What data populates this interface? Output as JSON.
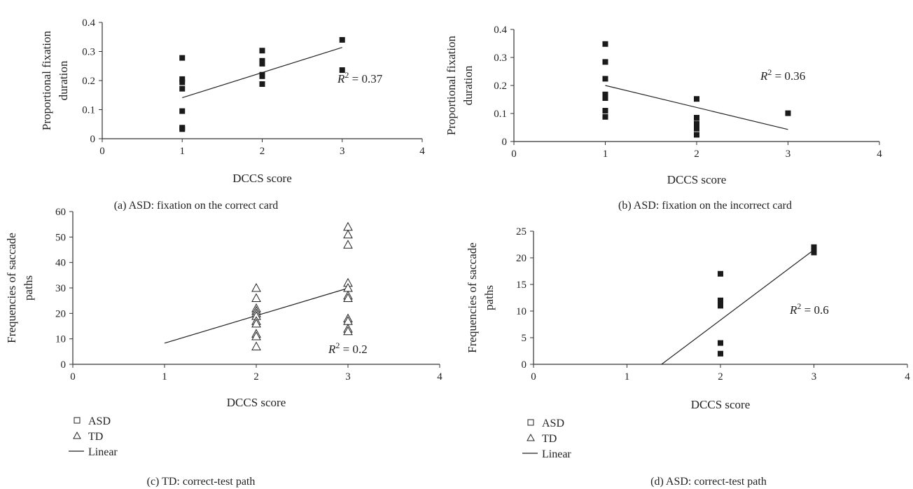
{
  "chart_data": [
    {
      "id": "a",
      "type": "scatter",
      "caption": "(a)  ASD: fixation on the correct card",
      "xlabel": "DCCS score",
      "ylabel_lines": [
        "Proportional fixation",
        "duration"
      ],
      "xlim": [
        0,
        4
      ],
      "ylim": [
        0,
        0.4
      ],
      "x_ticks": [
        "0",
        "1",
        "2",
        "3",
        "4"
      ],
      "y_ticks": [
        "0",
        "0.1",
        "0.2",
        "0.3",
        "0.4"
      ],
      "marker": "filled-square",
      "points": [
        [
          1,
          0.278
        ],
        [
          1,
          0.205
        ],
        [
          1,
          0.194
        ],
        [
          1,
          0.172
        ],
        [
          1,
          0.095
        ],
        [
          1,
          0.038
        ],
        [
          1,
          0.033
        ],
        [
          2,
          0.303
        ],
        [
          2,
          0.268
        ],
        [
          2,
          0.258
        ],
        [
          2,
          0.22
        ],
        [
          2,
          0.215
        ],
        [
          2,
          0.188
        ],
        [
          3,
          0.34
        ],
        [
          3,
          0.236
        ]
      ],
      "trendline": [
        [
          1,
          0.141
        ],
        [
          3,
          0.314
        ]
      ],
      "r2": {
        "prefix": "R",
        "sup": "2",
        "value": " = 0.37"
      }
    },
    {
      "id": "b",
      "type": "scatter",
      "caption": "(b)  ASD: fixation on the incorrect card",
      "xlabel": "DCCS score",
      "ylabel_lines": [
        "Proportional fixation",
        "duration"
      ],
      "xlim": [
        0,
        4
      ],
      "ylim": [
        0,
        0.4
      ],
      "x_ticks": [
        "0",
        "1",
        "2",
        "3",
        "4"
      ],
      "y_ticks": [
        "0",
        "0.1",
        "0.2",
        "0.3",
        "0.4"
      ],
      "marker": "filled-square",
      "points": [
        [
          1,
          0.348
        ],
        [
          1,
          0.284
        ],
        [
          1,
          0.224
        ],
        [
          1,
          0.168
        ],
        [
          1,
          0.155
        ],
        [
          1,
          0.11
        ],
        [
          1,
          0.088
        ],
        [
          2,
          0.152
        ],
        [
          2,
          0.085
        ],
        [
          2,
          0.064
        ],
        [
          2,
          0.046
        ],
        [
          2,
          0.024
        ],
        [
          3,
          0.101
        ]
      ],
      "trendline": [
        [
          1,
          0.2
        ],
        [
          3,
          0.043
        ]
      ],
      "r2": {
        "prefix": "R",
        "sup": "2",
        "value": " = 0.36"
      }
    },
    {
      "id": "c",
      "type": "scatter",
      "caption": "(c)  TD: correct-test path",
      "xlabel": "DCCS score",
      "ylabel_lines": [
        "Frequencies of saccade",
        "paths"
      ],
      "xlim": [
        0,
        4
      ],
      "ylim": [
        0,
        60
      ],
      "x_ticks": [
        "0",
        "1",
        "2",
        "3",
        "4"
      ],
      "y_ticks": [
        "0",
        "10",
        "20",
        "30",
        "40",
        "50",
        "60"
      ],
      "marker": "open-triangle",
      "points": [
        [
          2,
          30
        ],
        [
          2,
          26
        ],
        [
          2,
          22
        ],
        [
          2,
          21
        ],
        [
          2,
          20
        ],
        [
          2,
          19
        ],
        [
          2,
          17
        ],
        [
          2,
          16
        ],
        [
          2,
          12
        ],
        [
          2,
          11
        ],
        [
          2,
          7
        ],
        [
          3,
          54
        ],
        [
          3,
          51
        ],
        [
          3,
          47
        ],
        [
          3,
          32
        ],
        [
          3,
          30
        ],
        [
          3,
          27
        ],
        [
          3,
          26
        ],
        [
          3,
          18
        ],
        [
          3,
          17
        ],
        [
          3,
          14
        ],
        [
          3,
          13
        ]
      ],
      "trendline": [
        [
          1,
          8.3
        ],
        [
          3,
          29.9
        ]
      ],
      "r2": {
        "prefix": "R",
        "sup": "2",
        "value": " = 0.2"
      },
      "legend": [
        {
          "marker": "open-square",
          "label": "ASD"
        },
        {
          "marker": "open-triangle",
          "label": "TD"
        },
        {
          "marker": "line",
          "label": "Linear"
        }
      ]
    },
    {
      "id": "d",
      "type": "scatter",
      "caption": "(d)  ASD: correct-test path",
      "xlabel": "DCCS score",
      "ylabel_lines": [
        "Frequencies of saccade",
        "paths"
      ],
      "xlim": [
        0,
        4
      ],
      "ylim": [
        0,
        25
      ],
      "x_ticks": [
        "0",
        "1",
        "2",
        "3",
        "4"
      ],
      "y_ticks": [
        "0",
        "5",
        "10",
        "15",
        "20",
        "25"
      ],
      "marker": "filled-square",
      "points": [
        [
          2,
          17
        ],
        [
          2,
          12
        ],
        [
          2,
          11
        ],
        [
          2,
          4
        ],
        [
          2,
          2
        ],
        [
          3,
          22
        ],
        [
          3,
          21
        ]
      ],
      "trendline": [
        [
          1.37,
          0
        ],
        [
          3,
          21.5
        ]
      ],
      "r2": {
        "prefix": "R",
        "sup": "2",
        "value": " = 0.6"
      },
      "legend": [
        {
          "marker": "open-square",
          "label": "ASD"
        },
        {
          "marker": "open-triangle",
          "label": "TD"
        },
        {
          "marker": "line",
          "label": "Linear"
        }
      ]
    }
  ]
}
